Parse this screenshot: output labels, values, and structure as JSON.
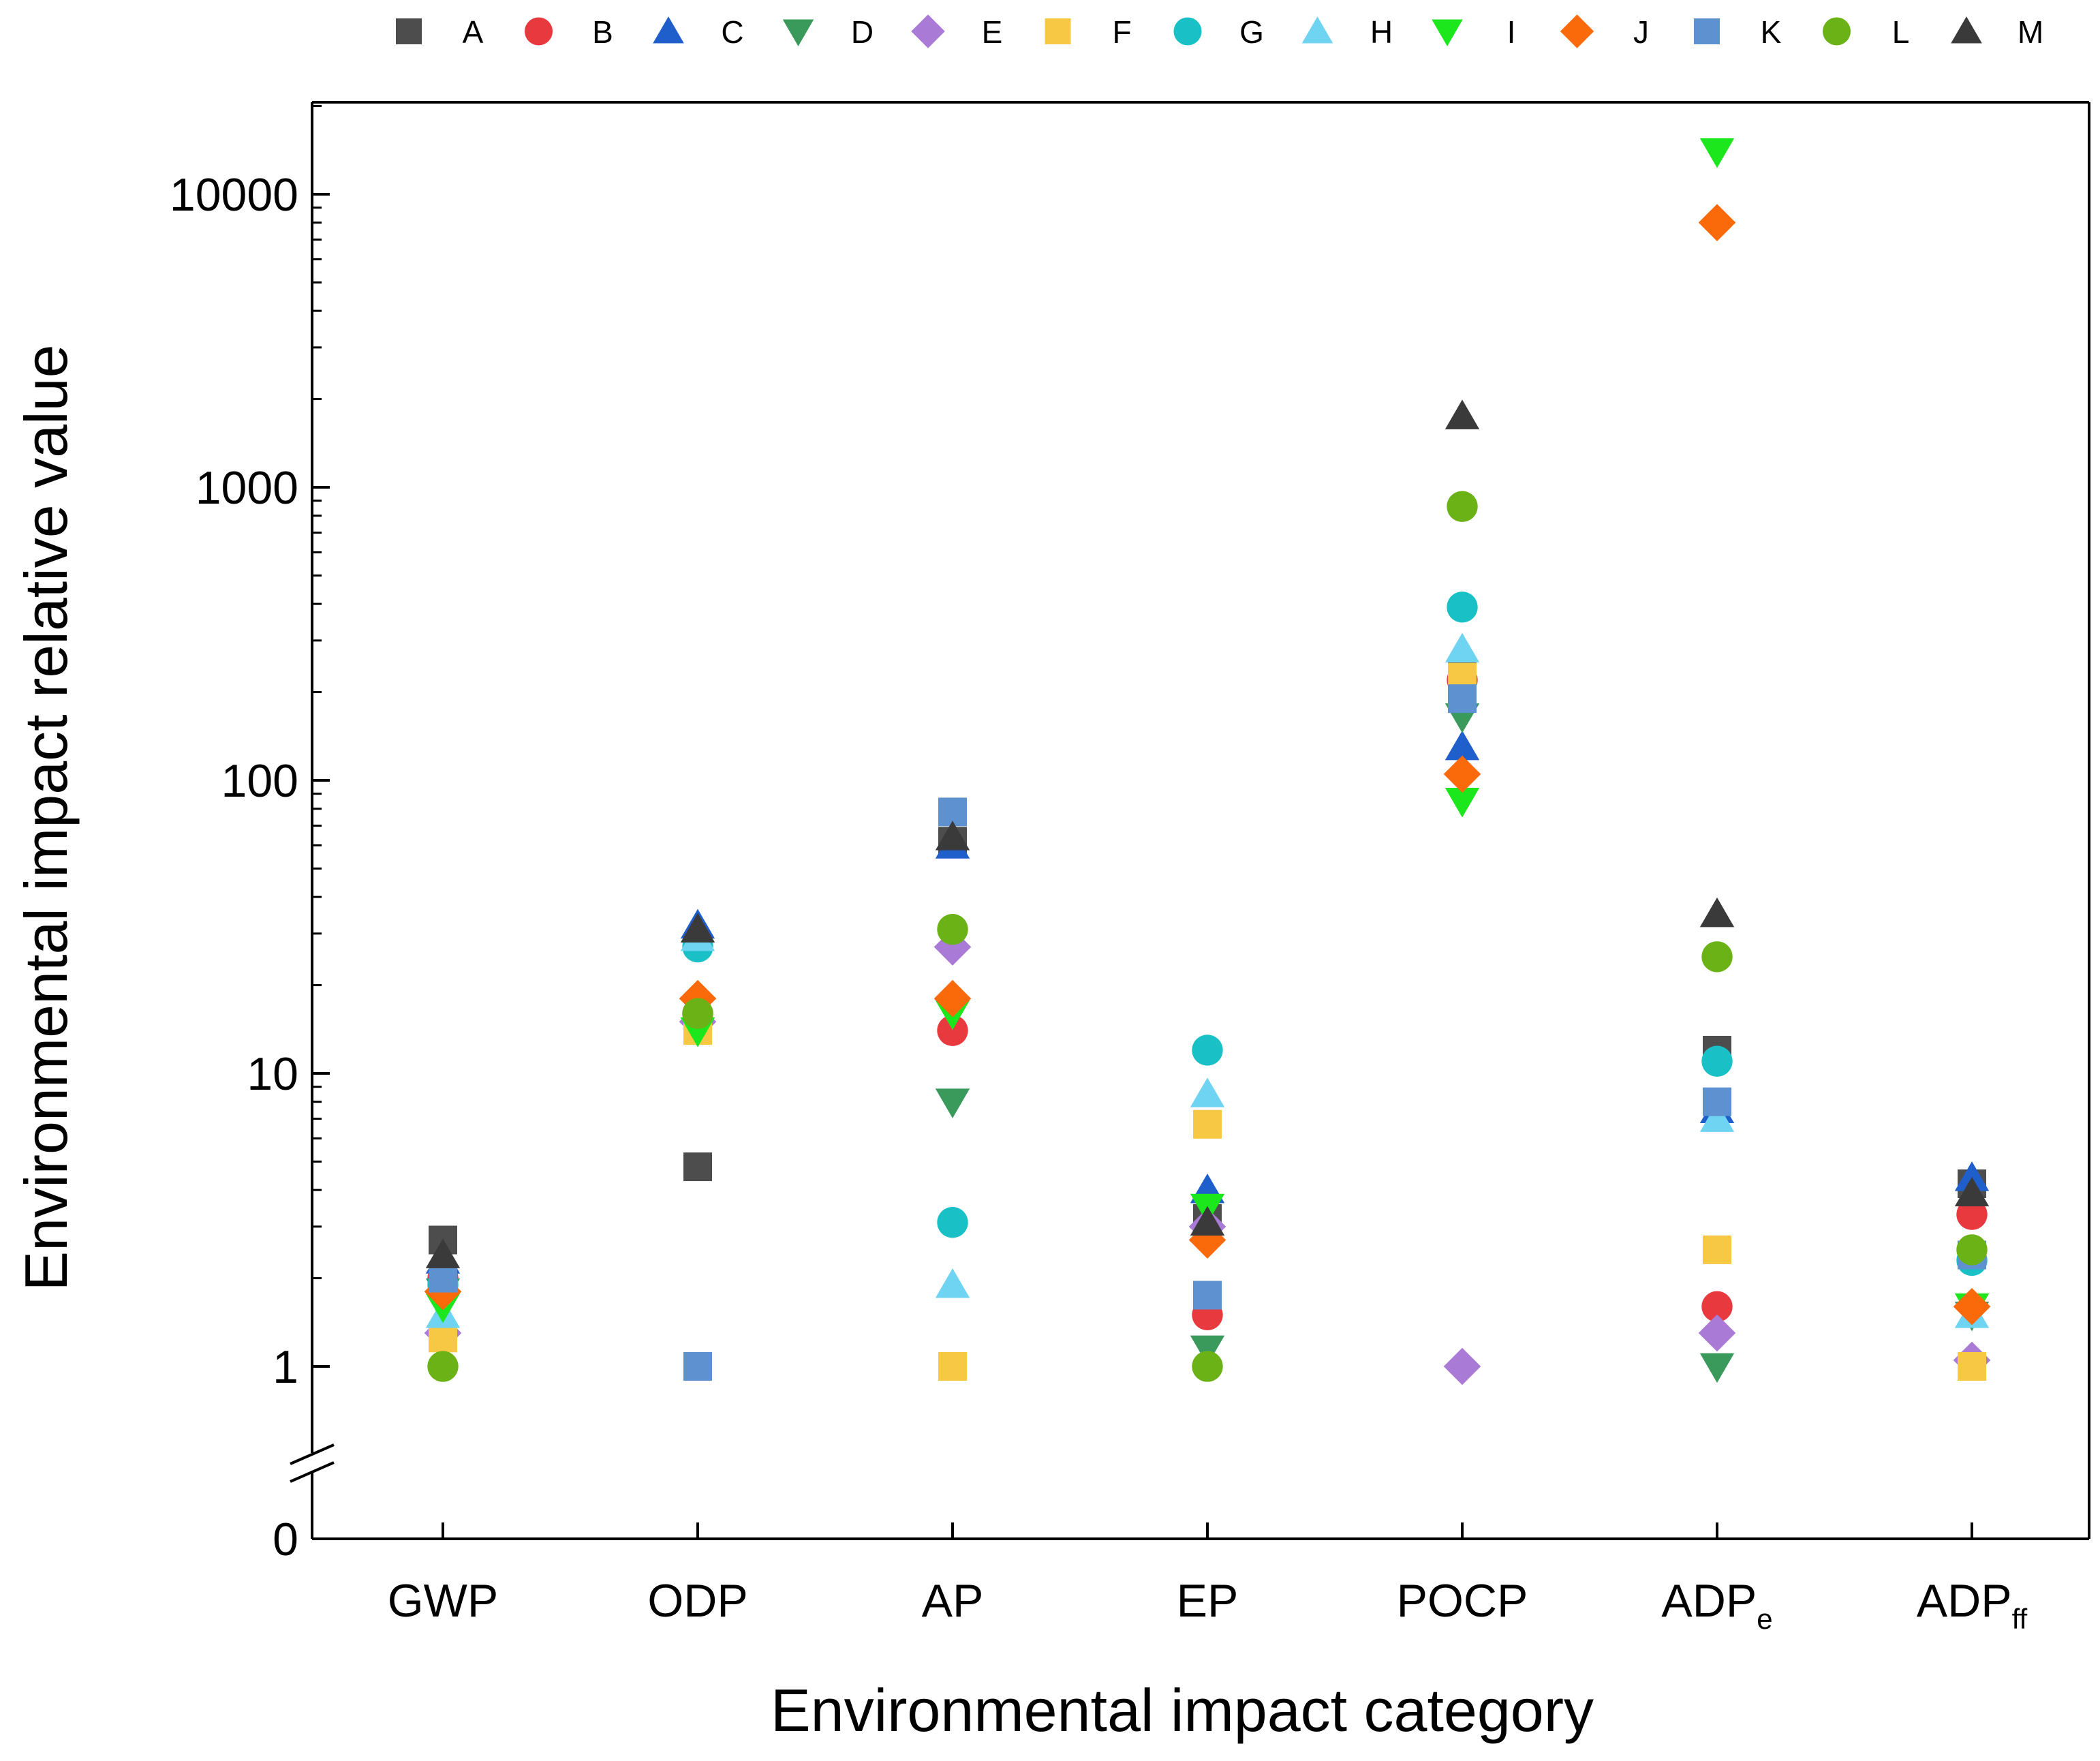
{
  "chart_data": {
    "type": "scatter",
    "title": "",
    "xlabel": "Environmental impact category",
    "ylabel": "Environmental impact relative value",
    "yscale": "log",
    "ylim": [
      1,
      20000
    ],
    "y_break": true,
    "y_zero_label": "0",
    "yticks": [
      {
        "value": 1,
        "label": "1"
      },
      {
        "value": 10,
        "label": "10"
      },
      {
        "value": 100,
        "label": "100"
      },
      {
        "value": 1000,
        "label": "1000"
      },
      {
        "value": 10000,
        "label": "10000"
      }
    ],
    "categories": [
      {
        "label": "GWP",
        "sub": ""
      },
      {
        "label": "ODP",
        "sub": ""
      },
      {
        "label": "AP",
        "sub": ""
      },
      {
        "label": "EP",
        "sub": ""
      },
      {
        "label": "POCP",
        "sub": ""
      },
      {
        "label": "ADP",
        "sub": "e"
      },
      {
        "label": "ADP",
        "sub": "ff"
      }
    ],
    "legend_position": "top",
    "series": [
      {
        "name": "A",
        "marker": "square",
        "color": "#4d4d4d",
        "values": [
          2.7,
          4.8,
          62,
          3.2,
          230,
          12,
          4.2
        ]
      },
      {
        "name": "B",
        "marker": "circle",
        "color": "#e8393f",
        "values": [
          2.0,
          16,
          14,
          1.5,
          220,
          1.6,
          3.3
        ]
      },
      {
        "name": "C",
        "marker": "triangle",
        "color": "#1f5fcc",
        "values": [
          2.3,
          32,
          60,
          4.0,
          130,
          7.5,
          4.4
        ]
      },
      {
        "name": "D",
        "marker": "tri-down",
        "color": "#3a9a5c",
        "values": [
          1.8,
          14,
          8.0,
          1.15,
          165,
          1.0,
          1.5
        ]
      },
      {
        "name": "E",
        "marker": "diamond",
        "color": "#a97ad6",
        "values": [
          1.3,
          15,
          27,
          3.0,
          1.0,
          1.3,
          1.05
        ]
      },
      {
        "name": "F",
        "marker": "square",
        "color": "#f7c843",
        "values": [
          1.25,
          14,
          1.0,
          6.7,
          225,
          2.5,
          1.0
        ]
      },
      {
        "name": "G",
        "marker": "circle",
        "color": "#19c0c6",
        "values": [
          1.9,
          27,
          3.1,
          12,
          390,
          11,
          2.3
        ]
      },
      {
        "name": "H",
        "marker": "triangle",
        "color": "#6fd3f2",
        "values": [
          1.5,
          29,
          1.9,
          8.5,
          280,
          7.0,
          1.5
        ]
      },
      {
        "name": "I",
        "marker": "tri-down",
        "color": "#1ce61c",
        "values": [
          1.6,
          14,
          16,
          3.5,
          85,
          14000,
          1.6
        ]
      },
      {
        "name": "J",
        "marker": "diamond",
        "color": "#fa6a0a",
        "values": [
          1.8,
          18,
          18,
          2.7,
          105,
          8000,
          1.6
        ]
      },
      {
        "name": "K",
        "marker": "square",
        "color": "#5e91cf",
        "values": [
          2.0,
          1.0,
          78,
          1.75,
          190,
          8.0,
          2.4
        ]
      },
      {
        "name": "L",
        "marker": "circle",
        "color": "#6ab216",
        "values": [
          1.0,
          16,
          31,
          1.0,
          860,
          25,
          2.5
        ]
      },
      {
        "name": "M",
        "marker": "triangle",
        "color": "#3a3a3a",
        "values": [
          2.4,
          31,
          64,
          3.1,
          1750,
          35,
          3.9
        ]
      }
    ]
  }
}
